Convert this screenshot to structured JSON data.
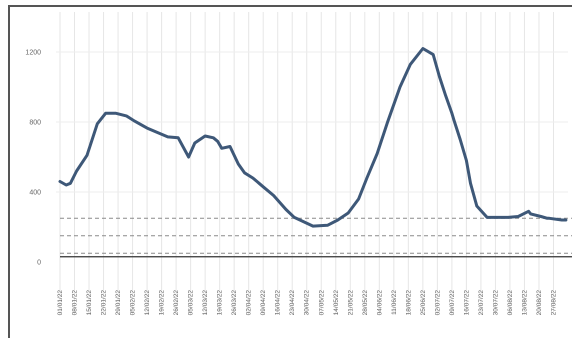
{
  "chart_data": {
    "type": "line",
    "title": "",
    "xlabel": "",
    "ylabel": "",
    "ylim": [
      0,
      1300
    ],
    "yticks": [
      0,
      400,
      800,
      1200
    ],
    "ytick_labels": [
      "0",
      "400",
      "800",
      "1200"
    ],
    "xlim": [
      "2022-01-01",
      "2022-09-03"
    ],
    "xtick_dates": [
      "2022-01-01",
      "2022-01-08",
      "2022-01-15",
      "2022-01-22",
      "2022-01-29",
      "2022-02-05",
      "2022-02-12",
      "2022-02-19",
      "2022-02-26",
      "2022-03-05",
      "2022-03-12",
      "2022-03-19",
      "2022-03-26",
      "2022-04-02",
      "2022-04-09",
      "2022-04-16",
      "2022-04-23",
      "2022-04-30",
      "2022-05-07",
      "2022-05-14",
      "2022-05-21",
      "2022-05-28",
      "2022-06-04",
      "2022-06-11",
      "2022-06-18",
      "2022-06-25",
      "2022-07-02",
      "2022-07-09",
      "2022-07-16",
      "2022-07-23",
      "2022-07-30",
      "2022-08-06",
      "2022-08-13",
      "2022-08-20",
      "2022-08-27"
    ],
    "xtick_labels": [
      "01/01/22",
      "08/01/22",
      "15/01/22",
      "22/01/22",
      "29/01/22",
      "05/02/22",
      "12/02/22",
      "19/02/22",
      "26/02/22",
      "05/03/22",
      "12/03/22",
      "19/03/22",
      "26/03/22",
      "02/04/22",
      "09/04/22",
      "16/04/22",
      "23/04/22",
      "30/04/22",
      "07/05/22",
      "14/05/22",
      "21/05/22",
      "28/05/22",
      "04/06/22",
      "11/06/22",
      "18/06/22",
      "25/06/22",
      "02/07/22",
      "09/07/22",
      "16/07/22",
      "23/07/22",
      "30/07/22",
      "06/08/22",
      "13/08/22",
      "20/08/22",
      "27/08/22"
    ],
    "grid": "vertical",
    "reference_lines": [
      {
        "y": 250,
        "style": "dashed"
      },
      {
        "y": 150,
        "style": "dashed"
      },
      {
        "y": 50,
        "style": "dashed"
      },
      {
        "y": 30,
        "style": "solid"
      }
    ],
    "series": [
      {
        "color": "#3e5878",
        "x": [
          "2022-01-01",
          "2022-01-04",
          "2022-01-06",
          "2022-01-09",
          "2022-01-14",
          "2022-01-19",
          "2022-01-23",
          "2022-01-28",
          "2022-02-02",
          "2022-02-06",
          "2022-02-12",
          "2022-02-18",
          "2022-02-22",
          "2022-02-27",
          "2022-03-04",
          "2022-03-07",
          "2022-03-12",
          "2022-03-16",
          "2022-03-18",
          "2022-03-20",
          "2022-03-24",
          "2022-03-28",
          "2022-03-31",
          "2022-04-04",
          "2022-04-06",
          "2022-04-07",
          "2022-04-09",
          "2022-04-14",
          "2022-04-20",
          "2022-04-24",
          "2022-05-03",
          "2022-05-10",
          "2022-05-15",
          "2022-05-20",
          "2022-05-25",
          "2022-05-29",
          "2022-06-03",
          "2022-06-08",
          "2022-06-14",
          "2022-06-19",
          "2022-06-25",
          "2022-06-30",
          "2022-07-03",
          "2022-07-06",
          "2022-07-09",
          "2022-07-10",
          "2022-07-13",
          "2022-07-16",
          "2022-07-18",
          "2022-07-21",
          "2022-07-26",
          "2022-07-31",
          "2022-08-05",
          "2022-08-10",
          "2022-08-15",
          "2022-08-16",
          "2022-08-21",
          "2022-08-24",
          "2022-08-25",
          "2022-08-31",
          "2022-09-02"
        ],
        "values": [
          460,
          440,
          450,
          520,
          610,
          790,
          850,
          850,
          835,
          805,
          765,
          735,
          715,
          710,
          600,
          680,
          720,
          710,
          690,
          650,
          660,
          560,
          510,
          480,
          460,
          450,
          430,
          380,
          300,
          255,
          205,
          210,
          240,
          280,
          360,
          480,
          620,
          800,
          1000,
          1130,
          1220,
          1185,
          1060,
          950,
          850,
          810,
          700,
          580,
          450,
          320,
          255,
          255,
          255,
          260,
          290,
          275,
          260,
          250,
          250,
          240,
          240
        ]
      }
    ]
  }
}
